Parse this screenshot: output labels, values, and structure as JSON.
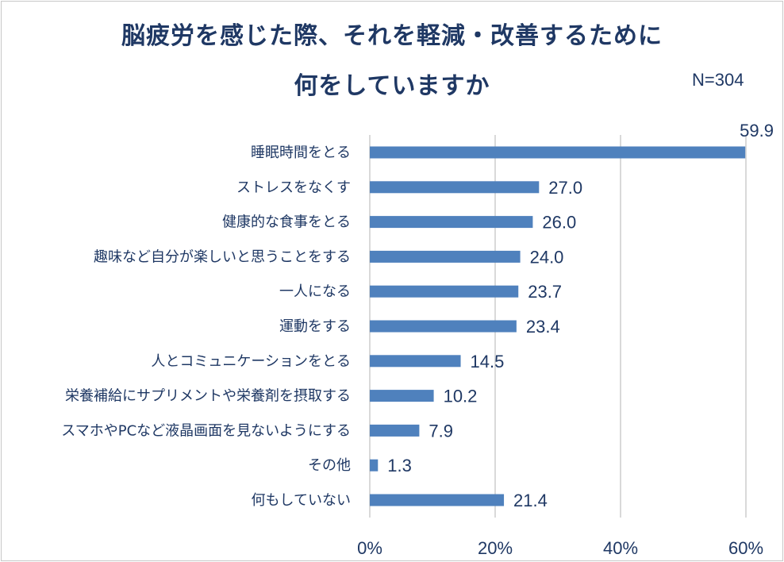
{
  "chart_data": {
    "type": "bar",
    "orientation": "horizontal",
    "title_line1": "脳疲労を感じた際、それを軽減・改善するために",
    "title_line2": "何をしていますか",
    "sample_size": "N=304",
    "categories": [
      "睡眠時間をとる",
      "ストレスをなくす",
      "健康的な食事をとる",
      "趣味など自分が楽しいと思うことをする",
      "一人になる",
      "運動をする",
      "人とコミュニケーションをとる",
      "栄養補給にサプリメントや栄養剤を摂取する",
      "スマホやPCなど液晶画面を見ないようにする",
      "その他",
      "何もしていない"
    ],
    "values": [
      59.9,
      27.0,
      26.0,
      24.0,
      23.7,
      23.4,
      14.5,
      10.2,
      7.9,
      1.3,
      21.4
    ],
    "value_labels": [
      "59.9",
      "27.0",
      "26.0",
      "24.0",
      "23.7",
      "23.4",
      "14.5",
      "10.2",
      "7.9",
      "1.3",
      "21.4"
    ],
    "xlim": [
      0,
      60
    ],
    "xticks": [
      0,
      20,
      40,
      60
    ],
    "xtick_labels": [
      "0%",
      "20%",
      "40%",
      "60%"
    ],
    "grid": true,
    "bar_color": "#4f81bd",
    "gridline_color": "#d9d9d9",
    "text_color": "#1f3864"
  }
}
